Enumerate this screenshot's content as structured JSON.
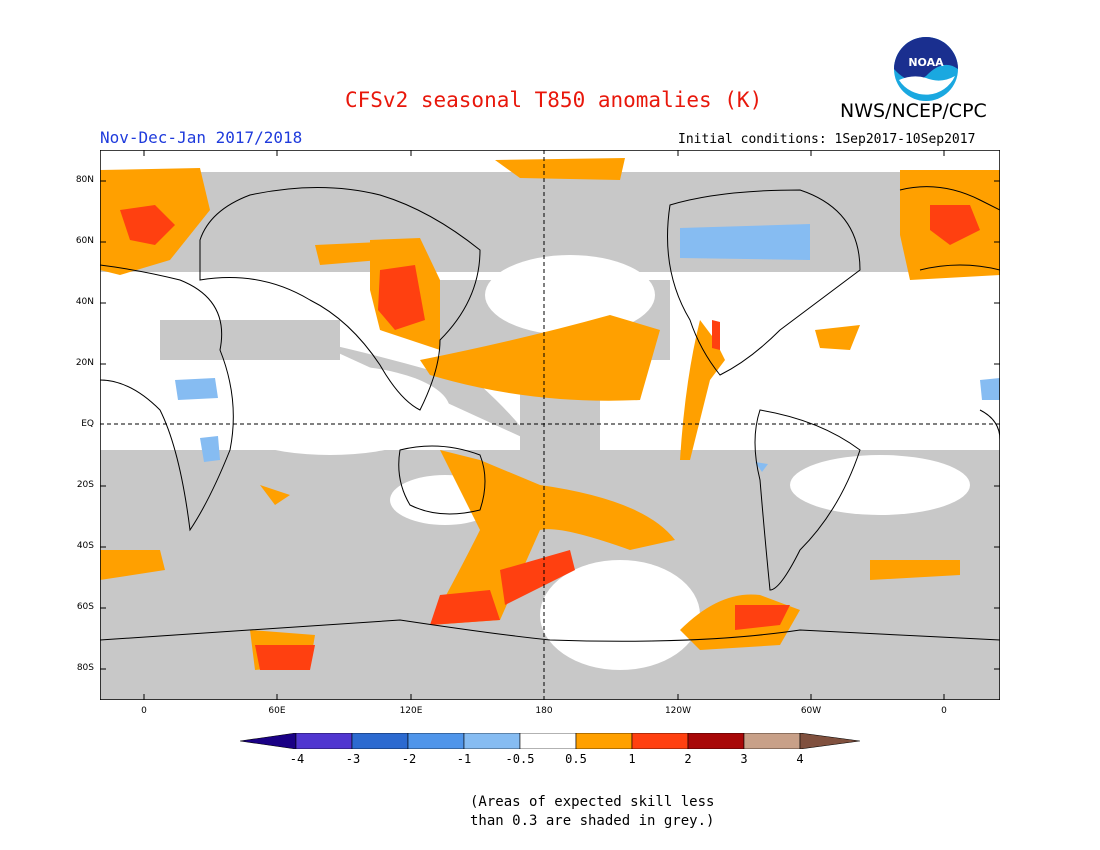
{
  "header": {
    "title": "CFSv2 seasonal T850 anomalies (K)",
    "agency": "NWS/NCEP/CPC",
    "season": "Nov-Dec-Jan 2017/2018",
    "initial_conditions": "Initial conditions: 1Sep2017-10Sep2017",
    "logo_text": "NOAA"
  },
  "map": {
    "lat_labels": [
      "80N",
      "60N",
      "40N",
      "20N",
      "EQ",
      "20S",
      "40S",
      "60S",
      "80S"
    ],
    "lon_labels": [
      "0",
      "60E",
      "120E",
      "180",
      "120W",
      "60W",
      "0"
    ]
  },
  "colorbar": {
    "ticks": [
      "-4",
      "-3",
      "-2",
      "-1",
      "-0.5",
      "0.5",
      "1",
      "2",
      "3",
      "4"
    ],
    "colors": [
      "#1a0085",
      "#5036d0",
      "#2c6ad0",
      "#4f95ea",
      "#86bcf2",
      "#ffffff",
      "#ffa000",
      "#ff4010",
      "#a80808",
      "#c8a088",
      "#80503e"
    ]
  },
  "note": {
    "line1": "(Areas of expected skill less",
    "line2": "than 0.3 are shaded in grey.)"
  },
  "colors": {
    "grey_skill": "#c8c8c8",
    "warm1": "#ffa000",
    "warm2": "#ff4010",
    "cool1": "#86bcf2"
  }
}
